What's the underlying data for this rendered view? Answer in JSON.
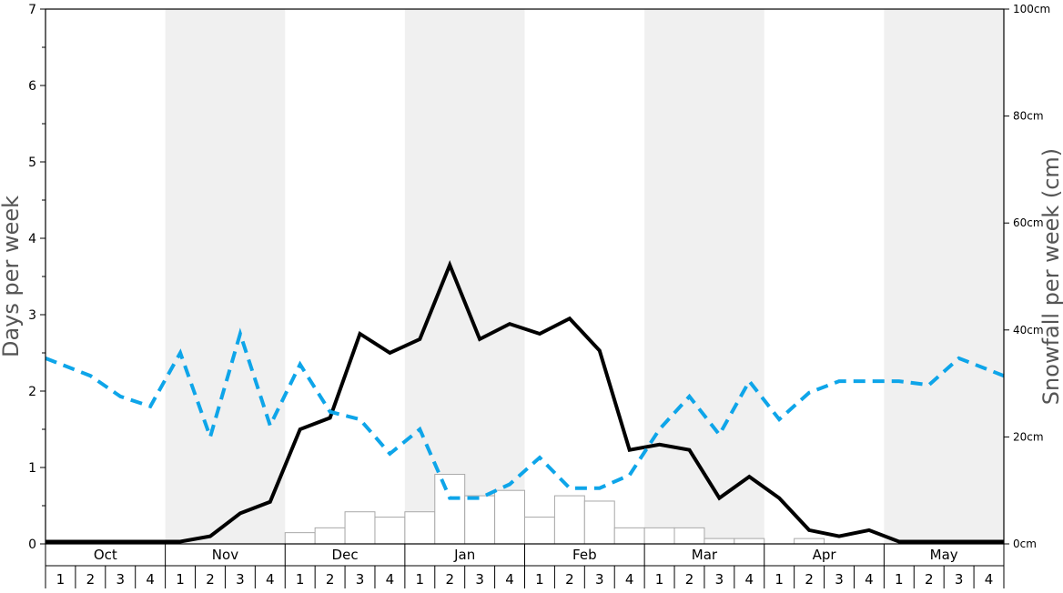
{
  "colors": {
    "shade_band": "#f0f0f0",
    "line_days": "#000000",
    "line_dashed": "#0ea5e9",
    "bar_fill": "#ffffff",
    "bar_stroke": "#a8a8a8",
    "axis_text": "#000000",
    "axis_title": "#555555"
  },
  "chart_data": {
    "type": "bar+line",
    "left_axis": {
      "label": "Days per week",
      "ylim": [
        0,
        7
      ],
      "ticks": [
        "0",
        "1",
        "2",
        "3",
        "4",
        "5",
        "6",
        "7"
      ]
    },
    "right_axis": {
      "label": "Snowfall per week (cm)",
      "ylim": [
        0,
        100
      ],
      "ticks": [
        "0cm",
        "20cm",
        "40cm",
        "60cm",
        "80cm",
        "100cm"
      ]
    },
    "months": [
      "Oct",
      "Nov",
      "Dec",
      "Jan",
      "Feb",
      "Mar",
      "Apr",
      "May"
    ],
    "week_labels": [
      "1",
      "2",
      "3",
      "4"
    ],
    "shaded_months": [
      "Nov",
      "Jan",
      "Mar",
      "May"
    ],
    "x": [
      "Oct 1",
      "Oct 2",
      "Oct 3",
      "Oct 4",
      "Nov 1",
      "Nov 2",
      "Nov 3",
      "Nov 4",
      "Dec 1",
      "Dec 2",
      "Dec 3",
      "Dec 4",
      "Jan 1",
      "Jan 2",
      "Jan 3",
      "Jan 4",
      "Feb 1",
      "Feb 2",
      "Feb 3",
      "Feb 4",
      "Mar 1",
      "Mar 2",
      "Mar 3",
      "Mar 4",
      "Apr 1",
      "Apr 2",
      "Apr 3",
      "Apr 4",
      "May 1",
      "May 2",
      "May 3",
      "May 4"
    ],
    "series": [
      {
        "type": "bar",
        "axis": "right",
        "values": [
          0,
          0,
          0,
          0,
          0,
          0,
          0,
          0,
          2.1,
          3.0,
          6.0,
          5.0,
          6.0,
          13.0,
          9.0,
          10.0,
          5.0,
          9.0,
          8.0,
          3.0,
          3.0,
          3.0,
          1.0,
          1.0,
          0,
          1.0,
          0,
          0,
          0,
          0,
          0,
          0
        ]
      },
      {
        "type": "line",
        "axis": "left",
        "style": "solid",
        "values": [
          0.03,
          0.03,
          0.03,
          0.03,
          0.03,
          0.1,
          0.4,
          0.55,
          1.5,
          1.65,
          2.75,
          2.5,
          2.68,
          3.65,
          2.68,
          2.88,
          2.75,
          2.95,
          2.53,
          1.23,
          1.3,
          1.23,
          0.6,
          0.88,
          0.6,
          0.18,
          0.1,
          0.18,
          0.03,
          0.03,
          0.03,
          0.03
        ]
      },
      {
        "type": "line",
        "axis": "left",
        "style": "dashed",
        "values": [
          2.43,
          2.2,
          1.93,
          1.8,
          2.5,
          1.4,
          2.75,
          1.55,
          2.35,
          1.73,
          1.63,
          1.18,
          1.5,
          0.6,
          0.6,
          0.78,
          1.13,
          0.73,
          0.73,
          0.9,
          1.5,
          1.93,
          1.43,
          2.13,
          1.63,
          1.98,
          2.13,
          2.13,
          2.13,
          2.08,
          2.43,
          2.2
        ]
      }
    ],
    "grid": false
  }
}
